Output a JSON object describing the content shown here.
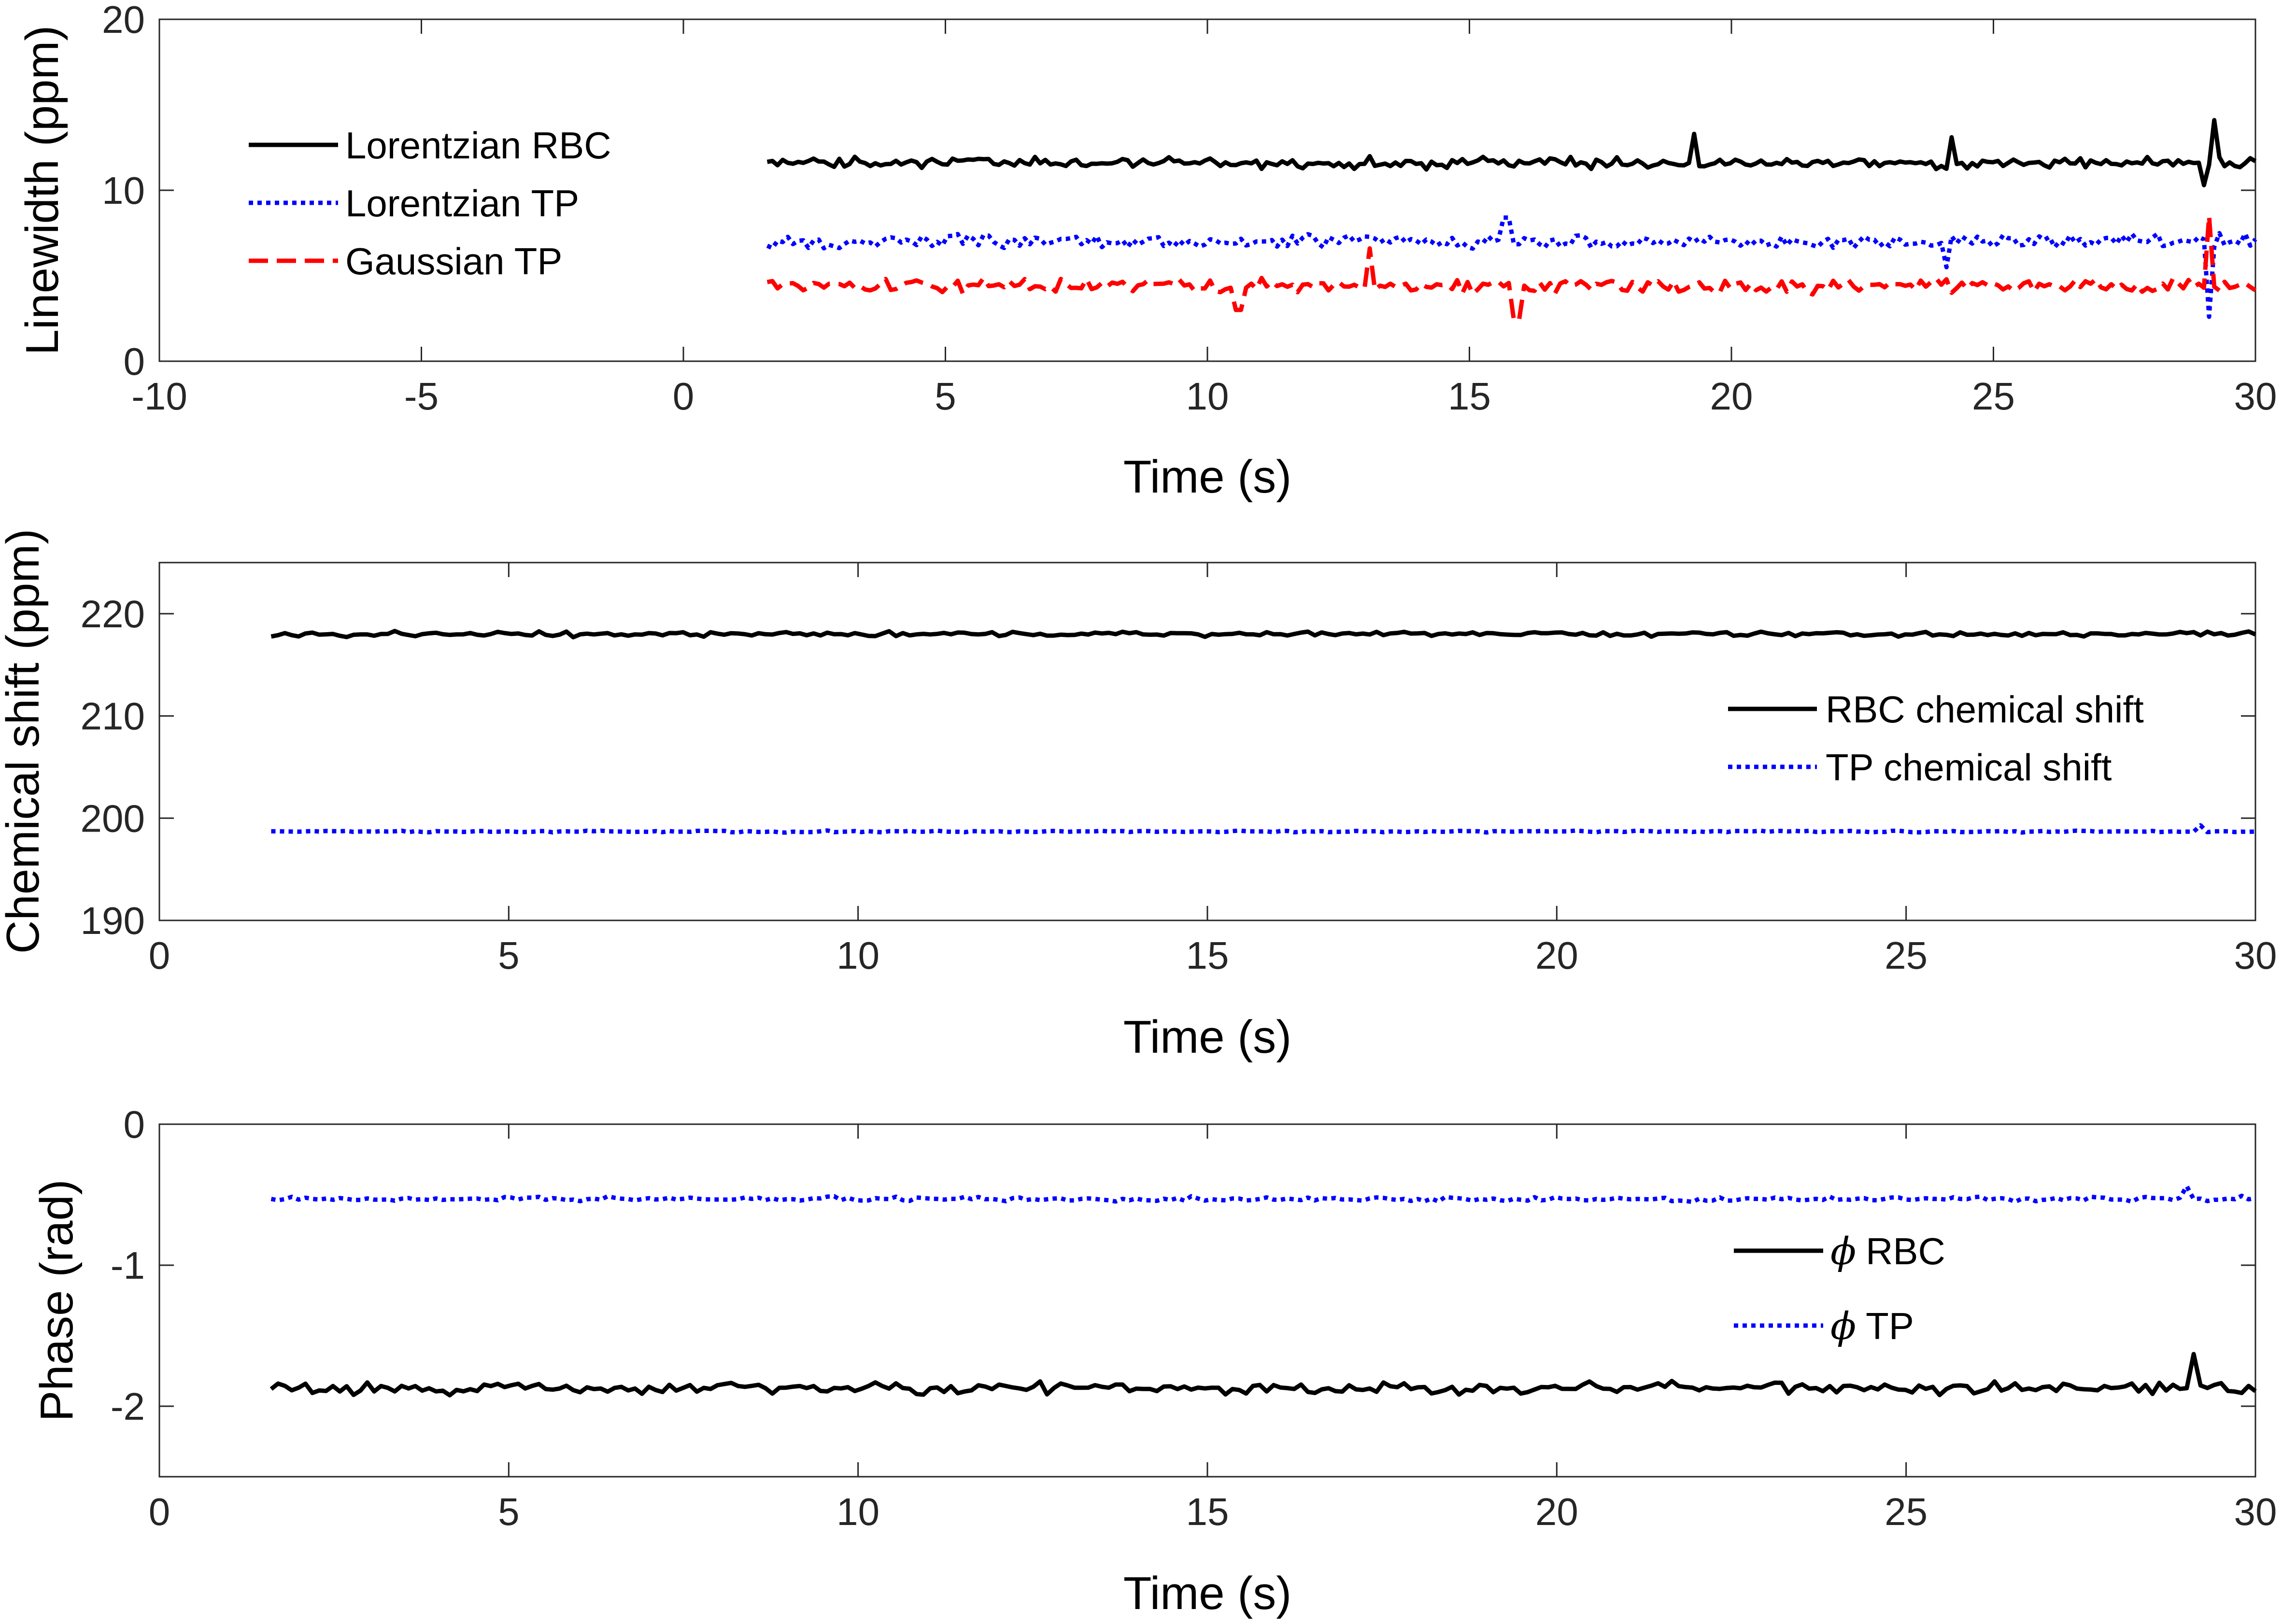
{
  "chart_data": [
    {
      "type": "line",
      "id": "linewidth",
      "title": "",
      "xlabel": "Time (s)",
      "ylabel": "Linewidth (ppm)",
      "xlim": [
        -10,
        30
      ],
      "ylim": [
        0,
        20
      ],
      "xticks": [
        -10,
        -5,
        0,
        5,
        10,
        15,
        20,
        25,
        30
      ],
      "yticks": [
        0,
        10,
        20
      ],
      "xtick_labels": [
        "-10",
        "-5",
        "0",
        "5",
        "10",
        "15",
        "20",
        "25",
        "30"
      ],
      "ytick_labels": [
        "0",
        "10",
        "20"
      ],
      "grid": false,
      "legend_position": "top-left",
      "x": {
        "start": 1.6,
        "end": 30,
        "count": 290
      },
      "series": [
        {
          "name": "Lorentzian RBC",
          "style": "solid",
          "color": "#000000",
          "mean": 11.6,
          "noise": 0.45,
          "spikes": [
            [
              19.3,
              13.3
            ],
            [
              24.2,
              13.1
            ],
            [
              29.2,
              14.1
            ],
            [
              29.05,
              10.3
            ]
          ]
        },
        {
          "name": "Lorentzian TP",
          "style": "dotted",
          "color": "#0000ff",
          "mean": 7.0,
          "noise": 0.6,
          "spikes": [
            [
              15.7,
              8.4
            ],
            [
              29.15,
              2.6
            ],
            [
              24.1,
              5.5
            ]
          ]
        },
        {
          "name": "Gaussian TP",
          "style": "dashed",
          "color": "#ff0000",
          "mean": 4.4,
          "noise": 0.6,
          "spikes": [
            [
              15.9,
              2.4
            ],
            [
              29.1,
              8.5
            ],
            [
              10.6,
              3.0
            ],
            [
              13.1,
              6.6
            ]
          ]
        }
      ]
    },
    {
      "type": "line",
      "id": "chemical-shift",
      "title": "",
      "xlabel": "Time (s)",
      "ylabel": "Chemical shift (ppm)",
      "xlim": [
        0,
        30
      ],
      "ylim": [
        190,
        225
      ],
      "xticks": [
        0,
        5,
        10,
        15,
        20,
        25,
        30
      ],
      "yticks": [
        190,
        200,
        210,
        220
      ],
      "xtick_labels": [
        "0",
        "5",
        "10",
        "15",
        "20",
        "25",
        "30"
      ],
      "ytick_labels": [
        "190",
        "200",
        "210",
        "220"
      ],
      "grid": false,
      "legend_position": "right",
      "x": {
        "start": 1.6,
        "end": 30,
        "count": 290
      },
      "series": [
        {
          "name": "RBC chemical shift",
          "style": "solid",
          "color": "#000000",
          "mean": 218.0,
          "noise": 0.35,
          "spikes": []
        },
        {
          "name": "TP chemical shift",
          "style": "dotted",
          "color": "#0000ff",
          "mean": 198.7,
          "noise": 0.12,
          "spikes": [
            [
              29.2,
              199.3
            ]
          ]
        }
      ]
    },
    {
      "type": "line",
      "id": "phase",
      "title": "",
      "xlabel": "Time (s)",
      "ylabel": "Phase (rad)",
      "xlim": [
        0,
        30
      ],
      "ylim": [
        -2.5,
        0
      ],
      "xticks": [
        0,
        5,
        10,
        15,
        20,
        25,
        30
      ],
      "yticks": [
        -2,
        -1,
        0
      ],
      "xtick_labels": [
        "0",
        "5",
        "10",
        "15",
        "20",
        "25",
        "30"
      ],
      "ytick_labels": [
        "-2",
        "-1",
        "0"
      ],
      "grid": false,
      "legend_position": "right",
      "x": {
        "start": 1.6,
        "end": 30,
        "count": 290
      },
      "series": [
        {
          "name": "RBC",
          "symbol": "ϕ",
          "style": "solid",
          "color": "#000000",
          "mean": -1.87,
          "noise": 0.06,
          "spikes": [
            [
              29.1,
              -1.63
            ]
          ]
        },
        {
          "name": "TP",
          "symbol": "ϕ",
          "style": "dotted",
          "color": "#0000ff",
          "mean": -0.53,
          "noise": 0.025,
          "spikes": [
            [
              29.0,
              -0.44
            ]
          ]
        }
      ]
    }
  ]
}
